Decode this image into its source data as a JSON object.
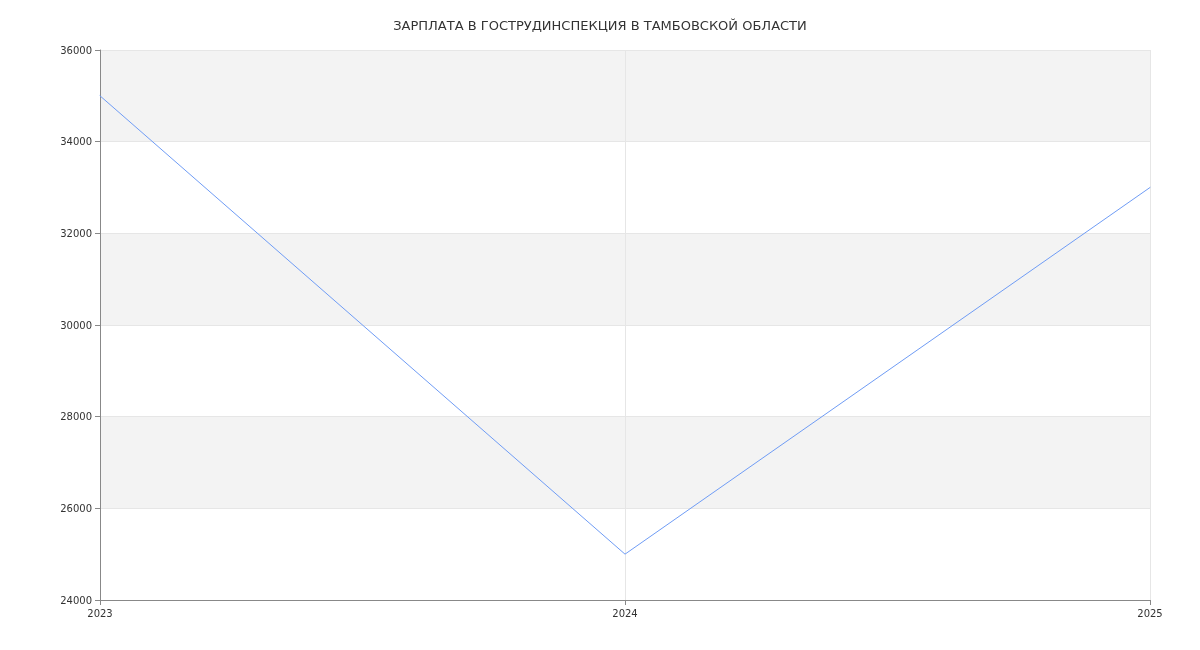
{
  "chart_data": {
    "type": "line",
    "title": "ЗАРПЛАТА В ГОСТРУДИНСПЕКЦИЯ В ТАМБОВСКОЙ ОБЛАСТИ",
    "x": [
      2023,
      2024,
      2025
    ],
    "xlim": [
      2023,
      2025
    ],
    "xticks": [
      2023,
      2024,
      2025
    ],
    "ylim": [
      24000,
      36000
    ],
    "yticks": [
      24000,
      26000,
      28000,
      30000,
      32000,
      34000,
      36000
    ],
    "series": [
      {
        "color": "#6f9cf5",
        "values": [
          35000,
          25000,
          33000
        ]
      }
    ],
    "grid": true,
    "marker": "none",
    "line_style": "solid"
  }
}
